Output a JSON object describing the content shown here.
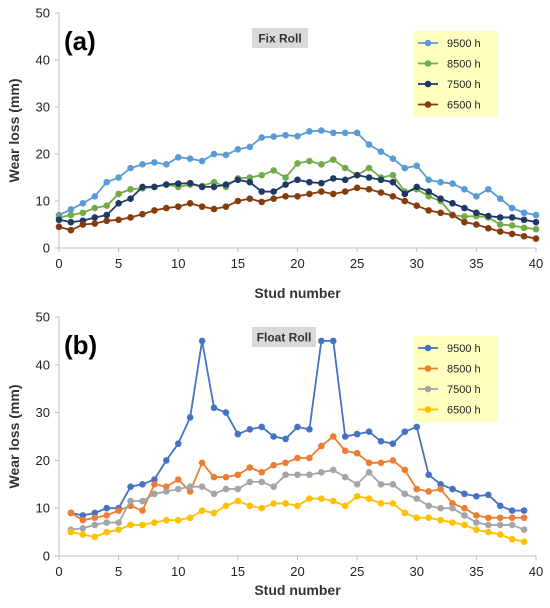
{
  "chart_data": [
    {
      "type": "line",
      "panel_label": "(a)",
      "title": "Fix Roll",
      "xlabel": "Stud number",
      "ylabel": "Wear loss (mm)",
      "xlim": [
        0,
        40
      ],
      "ylim": [
        0,
        50
      ],
      "xticks": [
        0,
        5,
        10,
        15,
        20,
        25,
        30,
        35,
        40
      ],
      "yticks": [
        0,
        10,
        20,
        30,
        40,
        50
      ],
      "legend_placement": "top-right",
      "x": [
        0,
        1,
        2,
        3,
        4,
        5,
        6,
        7,
        8,
        9,
        10,
        11,
        12,
        13,
        14,
        15,
        16,
        17,
        18,
        19,
        20,
        21,
        22,
        23,
        24,
        25,
        26,
        27,
        28,
        29,
        30,
        31,
        32,
        33,
        34,
        35,
        36,
        37,
        38,
        39,
        40
      ],
      "series": [
        {
          "name": "9500 h",
          "color": "#5b9bd5",
          "values": [
            7.0,
            8.2,
            9.5,
            11.0,
            14.0,
            15.0,
            17.0,
            17.8,
            18.2,
            17.8,
            19.3,
            19.0,
            18.5,
            20.0,
            19.8,
            21.0,
            21.5,
            23.5,
            23.7,
            24.0,
            23.8,
            24.8,
            25.0,
            24.5,
            24.5,
            24.5,
            22.0,
            20.5,
            19.0,
            17.0,
            17.5,
            14.5,
            14.0,
            13.7,
            12.5,
            11.0,
            12.5,
            10.5,
            8.5,
            7.5,
            7.0
          ]
        },
        {
          "name": "8500 h",
          "color": "#70ad47",
          "values": [
            6.5,
            7.0,
            7.5,
            8.5,
            9.0,
            11.5,
            12.5,
            12.7,
            13.0,
            13.5,
            13.0,
            13.5,
            13.2,
            14.0,
            13.0,
            14.8,
            15.0,
            15.5,
            16.5,
            15.0,
            18.0,
            18.5,
            17.8,
            18.8,
            17.0,
            15.5,
            17.0,
            15.0,
            15.5,
            12.0,
            12.5,
            11.0,
            10.0,
            7.0,
            6.7,
            6.8,
            6.5,
            5.0,
            4.8,
            4.3,
            4.0
          ]
        },
        {
          "name": "7500 h",
          "color": "#203864",
          "values": [
            6.0,
            5.5,
            5.8,
            6.5,
            7.0,
            9.5,
            10.5,
            13.0,
            13.0,
            13.5,
            13.7,
            13.8,
            13.0,
            13.0,
            13.5,
            14.5,
            14.0,
            12.0,
            12.0,
            13.5,
            14.5,
            14.0,
            13.8,
            14.8,
            14.5,
            15.5,
            15.0,
            14.5,
            14.0,
            11.5,
            13.0,
            12.0,
            10.5,
            9.5,
            8.5,
            7.5,
            6.8,
            6.5,
            6.5,
            6.0,
            5.5
          ]
        },
        {
          "name": "6500 h",
          "color": "#843c0c",
          "values": [
            4.5,
            3.8,
            5.0,
            5.2,
            5.8,
            6.0,
            6.5,
            7.2,
            8.0,
            8.5,
            8.8,
            9.5,
            8.8,
            8.3,
            8.8,
            10.0,
            10.5,
            9.8,
            10.5,
            11.0,
            11.0,
            11.5,
            12.0,
            11.5,
            12.0,
            12.8,
            12.5,
            11.8,
            11.0,
            10.0,
            9.0,
            8.0,
            7.5,
            7.0,
            5.5,
            5.0,
            4.2,
            3.5,
            3.0,
            2.5,
            2.0
          ]
        }
      ]
    },
    {
      "type": "line",
      "panel_label": "(b)",
      "title": "Float Roll",
      "xlabel": "Stud number",
      "ylabel": "Wear loss (mm)",
      "xlim": [
        0,
        40
      ],
      "ylim": [
        0,
        50
      ],
      "xticks": [
        0,
        5,
        10,
        15,
        20,
        25,
        30,
        35,
        40
      ],
      "yticks": [
        0,
        10,
        20,
        30,
        40,
        50
      ],
      "legend_placement": "top-right",
      "x": [
        1,
        2,
        3,
        4,
        5,
        6,
        7,
        8,
        9,
        10,
        11,
        12,
        13,
        14,
        15,
        16,
        17,
        18,
        19,
        20,
        21,
        22,
        23,
        24,
        25,
        26,
        27,
        28,
        29,
        30,
        31,
        32,
        33,
        34,
        35,
        36,
        37,
        38,
        39
      ],
      "series": [
        {
          "name": "9500 h",
          "color": "#4472c4",
          "values": [
            9.0,
            8.5,
            9.0,
            10.0,
            10.0,
            14.5,
            15.0,
            16.0,
            20.0,
            23.5,
            29.0,
            45.0,
            31.0,
            30.0,
            25.5,
            26.5,
            27.0,
            25.0,
            24.5,
            27.0,
            26.5,
            45.0,
            45.0,
            25.0,
            25.5,
            26.0,
            24.0,
            23.5,
            26.0,
            27.0,
            17.0,
            15.0,
            14.0,
            13.0,
            12.5,
            12.8,
            10.5,
            9.5,
            9.5
          ]
        },
        {
          "name": "8500 h",
          "color": "#ed7d31",
          "values": [
            9.0,
            7.5,
            8.0,
            8.5,
            9.5,
            10.5,
            9.5,
            15.0,
            14.5,
            16.0,
            13.5,
            19.5,
            16.5,
            16.5,
            17.0,
            18.5,
            17.5,
            19.0,
            19.5,
            20.5,
            20.5,
            23.0,
            25.0,
            22.0,
            21.5,
            19.5,
            19.5,
            20.0,
            18.0,
            14.0,
            13.5,
            14.0,
            11.0,
            10.0,
            8.5,
            8.0,
            8.0,
            8.0,
            8.0
          ]
        },
        {
          "name": "7500 h",
          "color": "#a5a5a5",
          "values": [
            5.5,
            5.8,
            6.5,
            7.0,
            7.0,
            11.5,
            11.5,
            13.0,
            13.5,
            14.0,
            14.5,
            14.5,
            13.0,
            14.0,
            14.0,
            15.5,
            15.5,
            14.5,
            17.0,
            17.0,
            17.0,
            17.5,
            18.0,
            16.5,
            15.0,
            17.5,
            15.0,
            15.0,
            13.0,
            12.0,
            10.5,
            10.0,
            10.0,
            8.5,
            7.0,
            6.5,
            6.5,
            6.5,
            5.5
          ]
        },
        {
          "name": "6500 h",
          "color": "#ffc000",
          "values": [
            5.0,
            4.5,
            4.0,
            5.0,
            5.5,
            6.5,
            6.5,
            7.0,
            7.5,
            7.5,
            8.0,
            9.5,
            9.0,
            10.5,
            11.5,
            10.5,
            10.0,
            11.0,
            11.0,
            10.5,
            12.0,
            12.0,
            11.5,
            10.5,
            12.5,
            12.0,
            11.0,
            11.0,
            9.0,
            8.0,
            8.0,
            7.5,
            7.0,
            6.5,
            5.5,
            5.0,
            4.5,
            3.5,
            3.0
          ]
        }
      ]
    }
  ]
}
